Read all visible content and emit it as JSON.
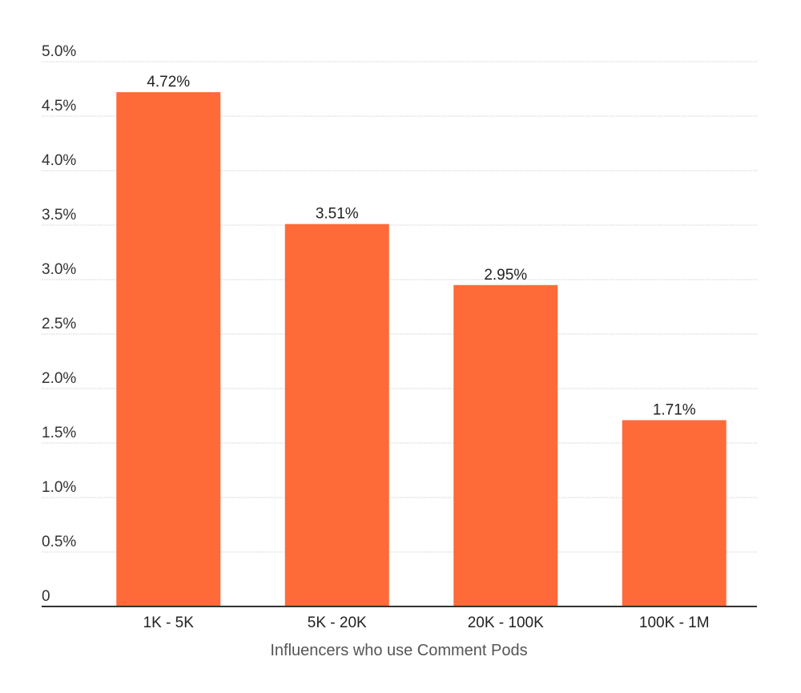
{
  "chart_data": {
    "type": "bar",
    "title": "",
    "xlabel": "Influencers who use Comment Pods",
    "ylabel": "",
    "categories": [
      "1K - 5K",
      "5K - 20K",
      "20K - 100K",
      "100K - 1M"
    ],
    "values": [
      4.72,
      3.51,
      2.95,
      1.71
    ],
    "value_labels": [
      "4.72%",
      "3.51%",
      "2.95%",
      "1.71%"
    ],
    "ylim": [
      0,
      5.0
    ],
    "yticks": [
      0,
      0.5,
      1.0,
      1.5,
      2.0,
      2.5,
      3.0,
      3.5,
      4.0,
      4.5,
      5.0
    ],
    "ytick_labels": [
      "0",
      "0.5%",
      "1.0%",
      "1.5%",
      "2.0%",
      "2.5%",
      "3.0%",
      "3.5%",
      "4.0%",
      "4.5%",
      "5.0%"
    ],
    "grid": true,
    "legend": "none",
    "colors": {
      "bar": "#FF6A39",
      "grid": "#d9d9d9",
      "axis": "#333333"
    }
  }
}
